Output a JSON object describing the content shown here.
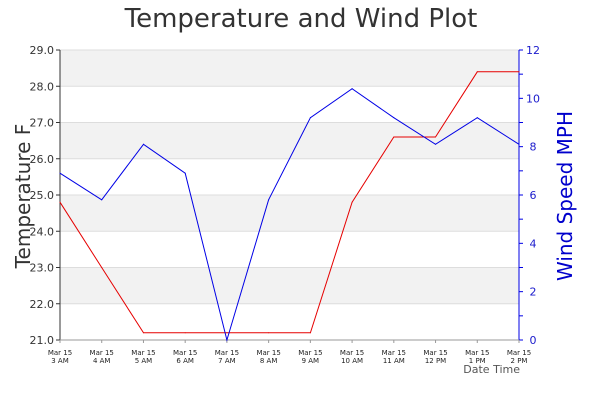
{
  "chart_data": {
    "type": "line",
    "title": "Temperature and Wind Plot",
    "xlabel": "Date Time",
    "ylabel_left": "Temperature F",
    "ylabel_right": "Wind Speed MPH",
    "categories": [
      [
        "Mar 15",
        "3 AM"
      ],
      [
        "Mar 15",
        "4 AM"
      ],
      [
        "Mar 15",
        "5 AM"
      ],
      [
        "Mar 15",
        "6 AM"
      ],
      [
        "Mar 15",
        "7 AM"
      ],
      [
        "Mar 15",
        "8 AM"
      ],
      [
        "Mar 15",
        "9 AM"
      ],
      [
        "Mar 15",
        "10 AM"
      ],
      [
        "Mar 15",
        "11 AM"
      ],
      [
        "Mar 15",
        "12 PM"
      ],
      [
        "Mar 15",
        "1 PM"
      ],
      [
        "Mar 15",
        "2 PM"
      ]
    ],
    "y_left": {
      "lim": [
        21.0,
        29.0
      ],
      "ticks": [
        "21.0",
        "22.0",
        "23.0",
        "24.0",
        "25.0",
        "26.0",
        "27.0",
        "28.0",
        "29.0"
      ]
    },
    "y_right": {
      "lim": [
        0,
        12
      ],
      "ticks": [
        "0",
        "2",
        "4",
        "6",
        "8",
        "10",
        "12"
      ],
      "minor_step": 1
    },
    "series": [
      {
        "axis": "left",
        "color": "#e60000",
        "values": [
          24.8,
          23.0,
          21.2,
          21.2,
          21.2,
          21.2,
          21.2,
          24.8,
          26.6,
          26.6,
          28.4,
          28.4
        ]
      },
      {
        "axis": "right",
        "color": "#0000e6",
        "values": [
          6.9,
          5.8,
          8.1,
          6.9,
          0.0,
          5.8,
          9.2,
          10.4,
          9.2,
          8.1,
          9.2,
          8.1
        ]
      }
    ],
    "grid": "horizontal bands",
    "colors": {
      "band": "#f2f2f2",
      "left_axis": "#333333",
      "right_axis": "#0000e6",
      "right_axis_label": "#0000cc"
    }
  }
}
